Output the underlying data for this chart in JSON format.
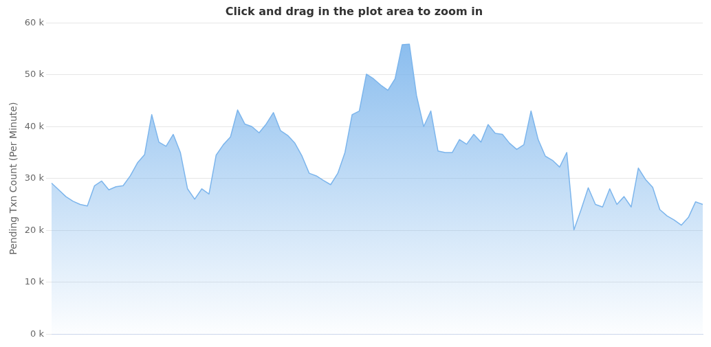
{
  "chart_data": {
    "type": "area",
    "title": "Click and drag in the plot area to zoom in",
    "ylabel": "Pending Txn Count (Per Minute)",
    "categories": [
      null,
      null,
      null,
      null,
      null,
      null,
      null,
      null,
      null,
      null,
      null,
      null,
      null,
      null,
      null,
      null,
      null,
      null,
      null,
      null,
      null,
      null,
      null,
      null,
      null,
      null,
      null,
      null,
      null,
      null,
      null,
      null,
      null,
      null,
      null,
      null,
      null,
      null,
      null,
      null,
      null,
      null,
      null,
      null,
      null,
      null,
      null,
      null,
      null,
      null,
      null,
      null,
      null,
      null,
      null,
      null,
      null,
      null,
      null,
      null,
      null,
      null,
      null,
      null,
      null,
      null,
      null,
      null,
      null,
      null,
      null,
      null,
      null,
      null,
      null,
      null,
      null,
      null,
      null,
      null,
      null,
      null,
      null,
      null,
      null,
      null,
      null,
      null,
      null,
      null,
      null,
      null
    ],
    "series": [
      {
        "color": "#7cb5ec",
        "values": [
          29.1,
          27.8,
          26.5,
          25.6,
          25.0,
          24.7,
          28.6,
          29.5,
          27.8,
          28.4,
          28.6,
          30.5,
          33.0,
          34.6,
          42.3,
          37.0,
          36.2,
          38.5,
          35.0,
          28.0,
          26.0,
          28.0,
          27.0,
          34.5,
          36.5,
          38.0,
          43.2,
          40.5,
          40.0,
          38.8,
          40.5,
          42.7,
          39.2,
          38.3,
          36.8,
          34.3,
          31.0,
          30.5,
          29.6,
          28.8,
          31.0,
          35.0,
          42.3,
          43.0,
          50.1,
          49.2,
          48.0,
          47.0,
          49.2,
          55.8,
          55.9,
          46.0,
          40.0,
          43.0,
          35.3,
          35.0,
          35.0,
          37.5,
          36.6,
          38.5,
          37.0,
          40.4,
          38.7,
          38.5,
          36.8,
          35.6,
          36.5,
          43.0,
          37.5,
          34.3,
          33.5,
          32.2,
          35.0,
          20.1,
          24.0,
          28.2,
          25.0,
          24.5,
          28.0,
          25.0,
          26.5,
          24.5,
          32.0,
          29.8,
          28.3,
          24.0,
          22.8,
          22.0,
          21.0,
          22.5,
          25.5,
          25.0
        ]
      }
    ],
    "ylim": [
      0,
      60
    ],
    "yticks": [
      {
        "value": 0,
        "label": "0 k"
      },
      {
        "value": 10,
        "label": "10 k"
      },
      {
        "value": 20,
        "label": "20 k"
      },
      {
        "value": 30,
        "label": "30 k"
      },
      {
        "value": 40,
        "label": "40 k"
      },
      {
        "value": 50,
        "label": "50 k"
      },
      {
        "value": 60,
        "label": "60 k"
      }
    ],
    "grid": "y",
    "legend": false,
    "marker": "none",
    "tick_labels": "y"
  }
}
